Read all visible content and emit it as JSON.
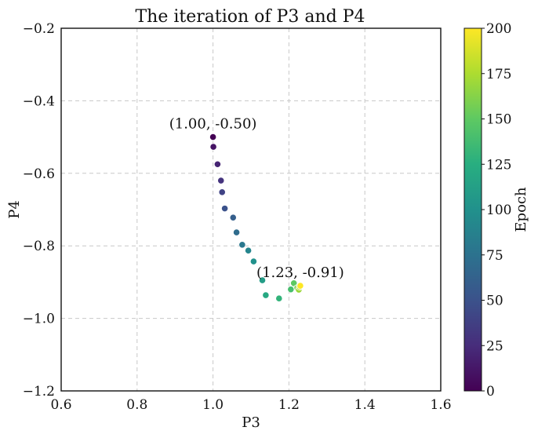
{
  "chart_data": {
    "type": "scatter",
    "title": "The iteration of P3 and P4",
    "xlabel": "P3",
    "ylabel": "P4",
    "xlim": [
      0.6,
      1.6
    ],
    "ylim": [
      -1.2,
      -0.2
    ],
    "x_ticks": [
      0.6,
      0.8,
      1.0,
      1.2,
      1.4,
      1.6
    ],
    "x_tick_labels": [
      "0.6",
      "0.8",
      "1.0",
      "1.2",
      "1.4",
      "1.6"
    ],
    "y_ticks": [
      -0.2,
      -0.4,
      -0.6,
      -0.8,
      -1.0,
      -1.2
    ],
    "y_tick_labels": [
      "−0.2",
      "−0.4",
      "−0.6",
      "−0.8",
      "−1.0",
      "−1.2"
    ],
    "grid": true,
    "colorbar": {
      "label": "Epoch",
      "colormap": "viridis",
      "range": [
        0,
        200
      ],
      "ticks": [
        0,
        25,
        50,
        75,
        100,
        125,
        150,
        175,
        200
      ],
      "tick_labels": [
        "0",
        "25",
        "50",
        "75",
        "100",
        "125",
        "150",
        "175",
        "200"
      ]
    },
    "points": [
      {
        "x": 1.0,
        "y": -0.5,
        "epoch": 0
      },
      {
        "x": 1.001,
        "y": -0.527,
        "epoch": 10
      },
      {
        "x": 1.012,
        "y": -0.575,
        "epoch": 20
      },
      {
        "x": 1.021,
        "y": -0.62,
        "epoch": 30
      },
      {
        "x": 1.024,
        "y": -0.652,
        "epoch": 40
      },
      {
        "x": 1.031,
        "y": -0.697,
        "epoch": 50
      },
      {
        "x": 1.053,
        "y": -0.722,
        "epoch": 60
      },
      {
        "x": 1.062,
        "y": -0.763,
        "epoch": 70
      },
      {
        "x": 1.077,
        "y": -0.797,
        "epoch": 80
      },
      {
        "x": 1.093,
        "y": -0.813,
        "epoch": 90
      },
      {
        "x": 1.107,
        "y": -0.843,
        "epoch": 100
      },
      {
        "x": 1.13,
        "y": -0.895,
        "epoch": 110
      },
      {
        "x": 1.139,
        "y": -0.936,
        "epoch": 120
      },
      {
        "x": 1.174,
        "y": -0.945,
        "epoch": 130
      },
      {
        "x": 1.205,
        "y": -0.92,
        "epoch": 140
      },
      {
        "x": 1.213,
        "y": -0.903,
        "epoch": 150
      },
      {
        "x": 1.222,
        "y": -0.916,
        "epoch": 160
      },
      {
        "x": 1.226,
        "y": -0.921,
        "epoch": 170
      },
      {
        "x": 1.228,
        "y": -0.913,
        "epoch": 180
      },
      {
        "x": 1.23,
        "y": -0.909,
        "epoch": 190
      },
      {
        "x": 1.23,
        "y": -0.91,
        "epoch": 200
      }
    ],
    "annotations": [
      {
        "text": "(1.00, -0.50)",
        "x": 1.0,
        "y": -0.5
      },
      {
        "text": "(1.23, -0.91)",
        "x": 1.23,
        "y": -0.91
      }
    ]
  }
}
